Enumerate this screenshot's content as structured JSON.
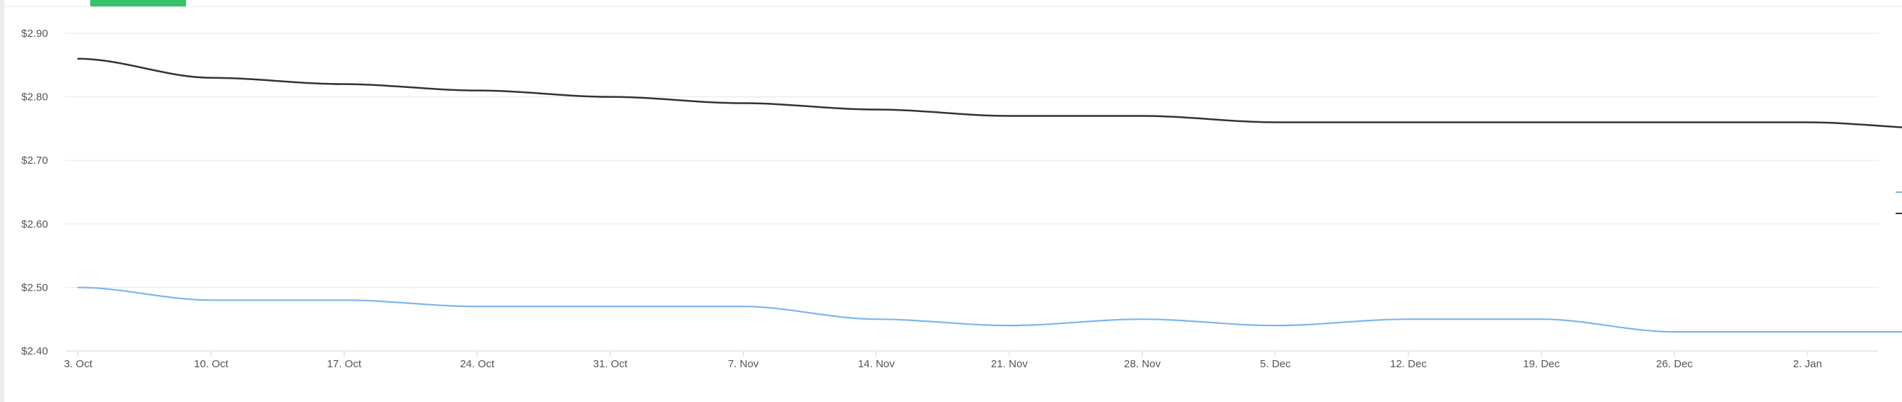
{
  "chart_data": {
    "type": "line",
    "title": "",
    "xlabel": "",
    "ylabel": "",
    "ylim": [
      2.4,
      2.9
    ],
    "yticks": [
      "$2.90",
      "$2.80",
      "$2.70",
      "$2.60",
      "$2.50",
      "$2.40"
    ],
    "ytick_values": [
      2.9,
      2.8,
      2.7,
      2.6,
      2.5,
      2.4
    ],
    "xticks": [
      "3. Oct",
      "10. Oct",
      "17. Oct",
      "24. Oct",
      "31. Oct",
      "7. Nov",
      "14. Nov",
      "21. Nov",
      "28. Nov",
      "5. Dec",
      "12. Dec",
      "19. Dec",
      "26. Dec",
      "2. Jan"
    ],
    "x": [
      "2022-10-03",
      "2022-10-10",
      "2022-10-17",
      "2022-10-24",
      "2022-10-31",
      "2022-11-07",
      "2022-11-14",
      "2022-11-21",
      "2022-11-28",
      "2022-12-05",
      "2022-12-12",
      "2022-12-19",
      "2022-12-26",
      "2023-01-02",
      "2023-01-09"
    ],
    "grid": true,
    "legend": "right",
    "series": [
      {
        "color": "#333333",
        "values": [
          2.86,
          2.83,
          2.82,
          2.81,
          2.8,
          2.79,
          2.78,
          2.77,
          2.77,
          2.76,
          2.76,
          2.76,
          2.76,
          2.76,
          2.75
        ]
      },
      {
        "color": "#7cb5ec",
        "values": [
          2.5,
          2.48,
          2.48,
          2.47,
          2.47,
          2.47,
          2.45,
          2.44,
          2.45,
          2.44,
          2.45,
          2.45,
          2.43,
          2.43,
          2.43
        ]
      }
    ]
  },
  "colors": {
    "tab_indicator": "#35c26b",
    "grid": "#e6e6e6",
    "axis": "#ccd6eb"
  }
}
